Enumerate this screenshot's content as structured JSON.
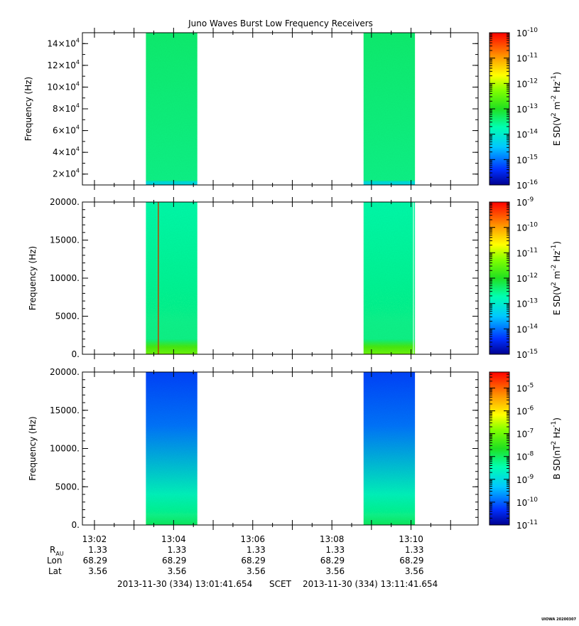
{
  "chart_data": [
    {
      "type": "heatmap",
      "title": "Juno Waves Burst Low Frequency Receivers",
      "ylabel": "Frequency (Hz)",
      "ytick_base": "×10",
      "ytick_mantissas": [
        "2",
        "4",
        "6",
        "8",
        "10",
        "12",
        "14"
      ],
      "yticks": [
        20000,
        40000,
        60000,
        80000,
        100000,
        120000,
        140000
      ],
      "ytick_exponent": "4",
      "ylim": [
        10000,
        150000
      ],
      "colorbar_label": "E SD (V",
      "colorbar_label_parts": [
        "E SD(V",
        "2",
        " m",
        "-2",
        " Hz",
        "-1",
        ")"
      ],
      "colorbar_ticks": [
        "-10",
        "-11",
        "-12",
        "-13",
        "-14",
        "-15",
        "-16"
      ],
      "colorbar_log_range": [
        -16,
        -10
      ],
      "bursts": [
        {
          "start_min": 3.3,
          "end_min": 4.6,
          "level_log": -13.4
        },
        {
          "start_min": 8.8,
          "end_min": 10.1,
          "level_log": -13.4
        }
      ]
    },
    {
      "type": "heatmap",
      "ylabel": "Frequency (Hz)",
      "yticks": [
        "0.",
        "5000.",
        "10000.",
        "15000.",
        "20000."
      ],
      "ytick_values": [
        0,
        5000,
        10000,
        15000,
        20000
      ],
      "ylim": [
        0,
        20000
      ],
      "colorbar_label_parts": [
        "E SD(V",
        "2",
        " m",
        "-2",
        " Hz",
        "-1",
        ")"
      ],
      "colorbar_ticks": [
        "-9",
        "-10",
        "-11",
        "-12",
        "-13",
        "-14",
        "-15"
      ],
      "colorbar_log_range": [
        -15,
        -9
      ],
      "bursts": [
        {
          "start_min": 3.3,
          "end_min": 4.6,
          "level_log": -12.7,
          "low_freq_level_log": -11.4
        },
        {
          "start_min": 8.8,
          "end_min": 10.1,
          "level_log": -12.7,
          "low_freq_level_log": -11.4
        }
      ]
    },
    {
      "type": "heatmap",
      "ylabel": "Frequency (Hz)",
      "yticks": [
        "0.",
        "5000.",
        "10000.",
        "15000.",
        "20000."
      ],
      "ytick_values": [
        0,
        5000,
        10000,
        15000,
        20000
      ],
      "ylim": [
        0,
        20000
      ],
      "xlabel": "SCET",
      "xticks": [
        "13:02",
        "13:04",
        "13:06",
        "13:08",
        "13:10"
      ],
      "xtick_minutes": [
        2,
        4,
        6,
        8,
        10
      ],
      "xlim_minutes": [
        1.6956,
        11.6956
      ],
      "colorbar_label_parts": [
        "B SD(nT",
        "2",
        " Hz",
        "-1",
        ")"
      ],
      "colorbar_ticks": [
        "-5",
        "-6",
        "-7",
        "-8",
        "-9",
        "-10",
        "-11"
      ],
      "colorbar_log_range": [
        -11,
        -4.3
      ],
      "bursts": [
        {
          "start_min": 3.3,
          "end_min": 4.6,
          "level_log_top": -10.2,
          "level_log_bottom": -8.6,
          "low_freq_level_log": -8.0
        },
        {
          "start_min": 8.8,
          "end_min": 10.1,
          "level_log_top": -10.2,
          "level_log_bottom": -8.6,
          "low_freq_level_log": -8.0
        }
      ]
    }
  ],
  "ephemeris": {
    "labels": {
      "r": "R",
      "r_sub": "AU",
      "lon": "Lon",
      "lat": "Lat"
    },
    "r_au": [
      "1.33",
      "1.33",
      "1.33",
      "1.33",
      "1.33"
    ],
    "lon": [
      "68.29",
      "68.29",
      "68.29",
      "68.29",
      "68.29"
    ],
    "lat": [
      "3.56",
      "3.56",
      "3.56",
      "3.56",
      "3.56"
    ]
  },
  "time_range": {
    "start": "2013-11-30 (334) 13:01:41.654",
    "label": "SCET",
    "end": "2013-11-30 (334) 13:11:41.654"
  },
  "footer_stamp": "UIOWA 20200307"
}
